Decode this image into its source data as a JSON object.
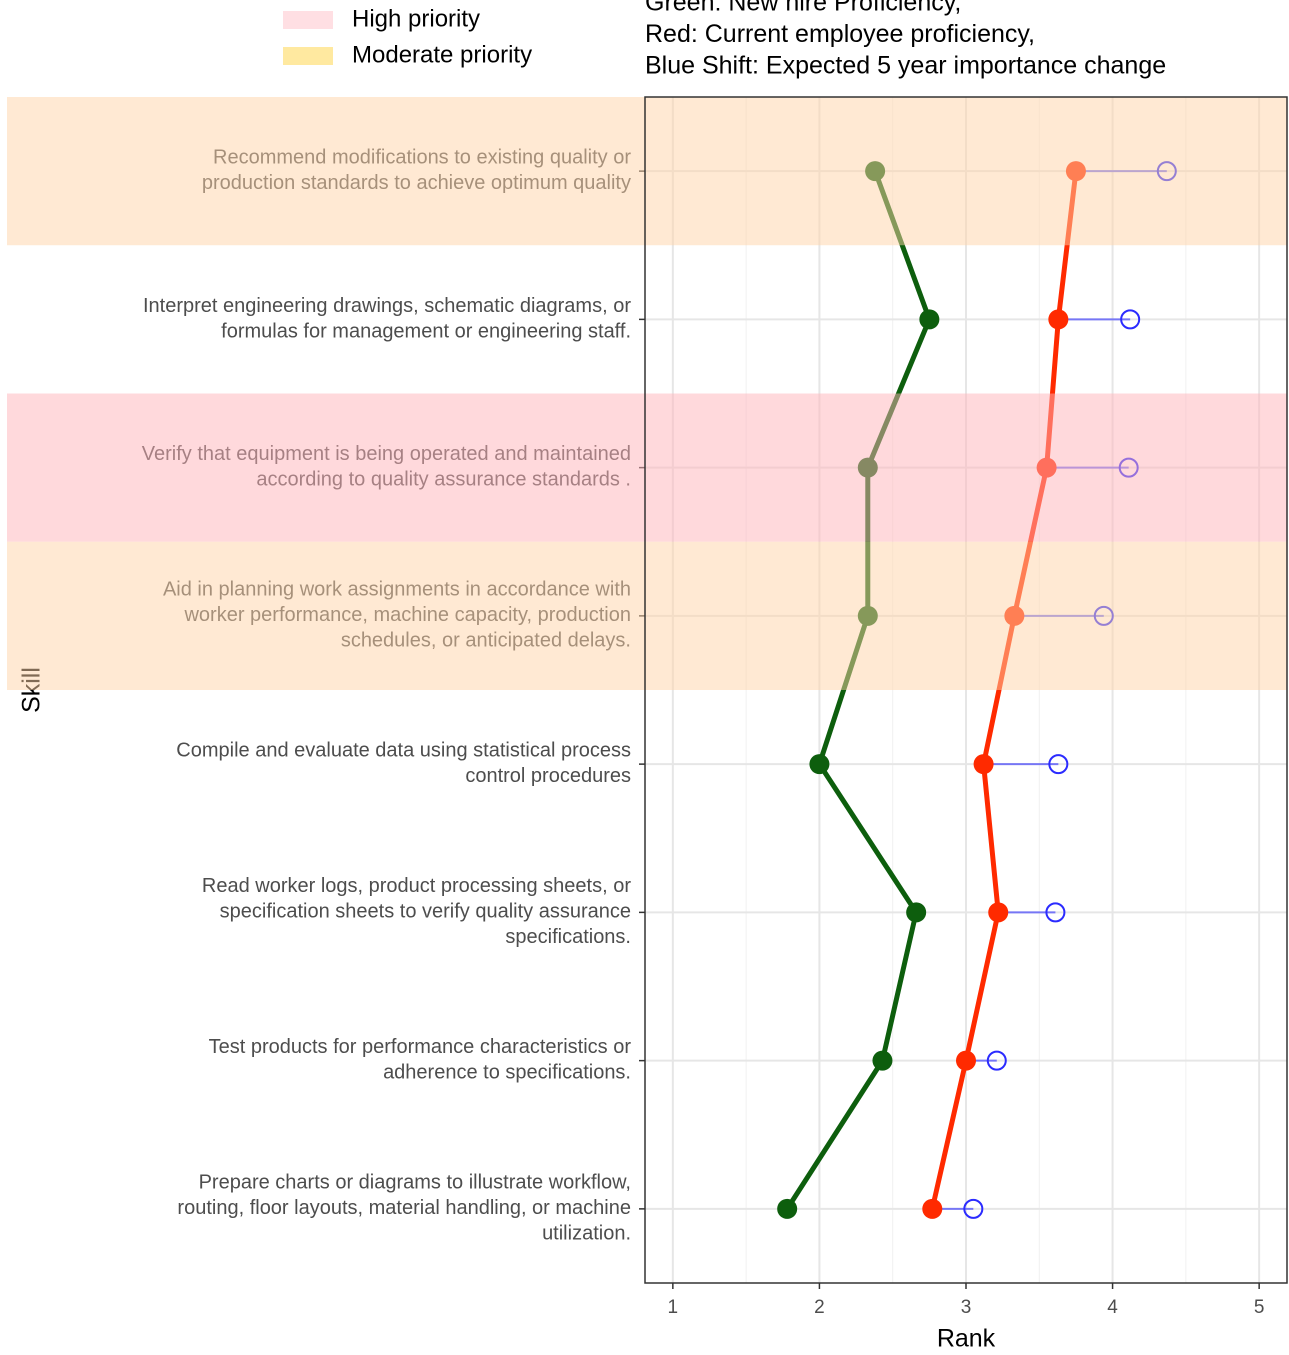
{
  "chart_data": {
    "type": "dumbbell_line",
    "title_lines": [
      "Green: New hire Proficiency,",
      "Red: Current employee proficiency,",
      "Blue Shift: Expected 5 year importance change"
    ],
    "xlabel": "Rank",
    "ylabel": "Skill",
    "categories": [
      [
        "Recommend modifications to existing quality or",
        "production standards to achieve optimum quality"
      ],
      [
        "Interpret engineering drawings, schematic diagrams, or",
        "formulas for management or engineering staff."
      ],
      [
        "Verify that equipment is being operated and maintained",
        "according to quality assurance standards ."
      ],
      [
        "Aid in planning work assignments in accordance with",
        "worker performance, machine capacity, production",
        "schedules, or anticipated delays."
      ],
      [
        "Compile and evaluate data using statistical process",
        "control procedures"
      ],
      [
        "Read worker logs, product processing sheets, or",
        "specification sheets to verify quality assurance",
        "specifications."
      ],
      [
        "Test products for performance characteristics or",
        "adherence to specifications."
      ],
      [
        "Prepare charts or diagrams to illustrate workflow,",
        "routing, floor layouts, material handling, or machine",
        "utilization."
      ]
    ],
    "series": [
      {
        "color": "#0d5e0d",
        "values": [
          2.38,
          2.75,
          2.33,
          2.33,
          2.0,
          2.66,
          2.43,
          1.78
        ]
      },
      {
        "color": "#ff2a00",
        "values": [
          3.75,
          3.63,
          3.55,
          3.33,
          3.12,
          3.22,
          3.0,
          2.77
        ]
      },
      {
        "color": "#2b2bff",
        "values": [
          4.37,
          4.12,
          4.11,
          3.94,
          3.63,
          3.61,
          3.21,
          3.05
        ]
      }
    ],
    "legend": [
      {
        "name": "High priority",
        "color": "#ffdfe3",
        "band_color": "#ffb3ba"
      },
      {
        "name": "Moderate priority",
        "color": "#ffe9a0",
        "band_color": "#ffd4a8"
      }
    ],
    "priority": [
      "Moderate priority",
      null,
      "High priority",
      "Moderate priority",
      null,
      null,
      null,
      null
    ],
    "xlim": [
      0.81,
      5.19
    ],
    "xticks": [
      1,
      2,
      3,
      4,
      5
    ],
    "minor_xticks": [
      1.5,
      2.5,
      3.5,
      4.5
    ],
    "grid": true
  }
}
